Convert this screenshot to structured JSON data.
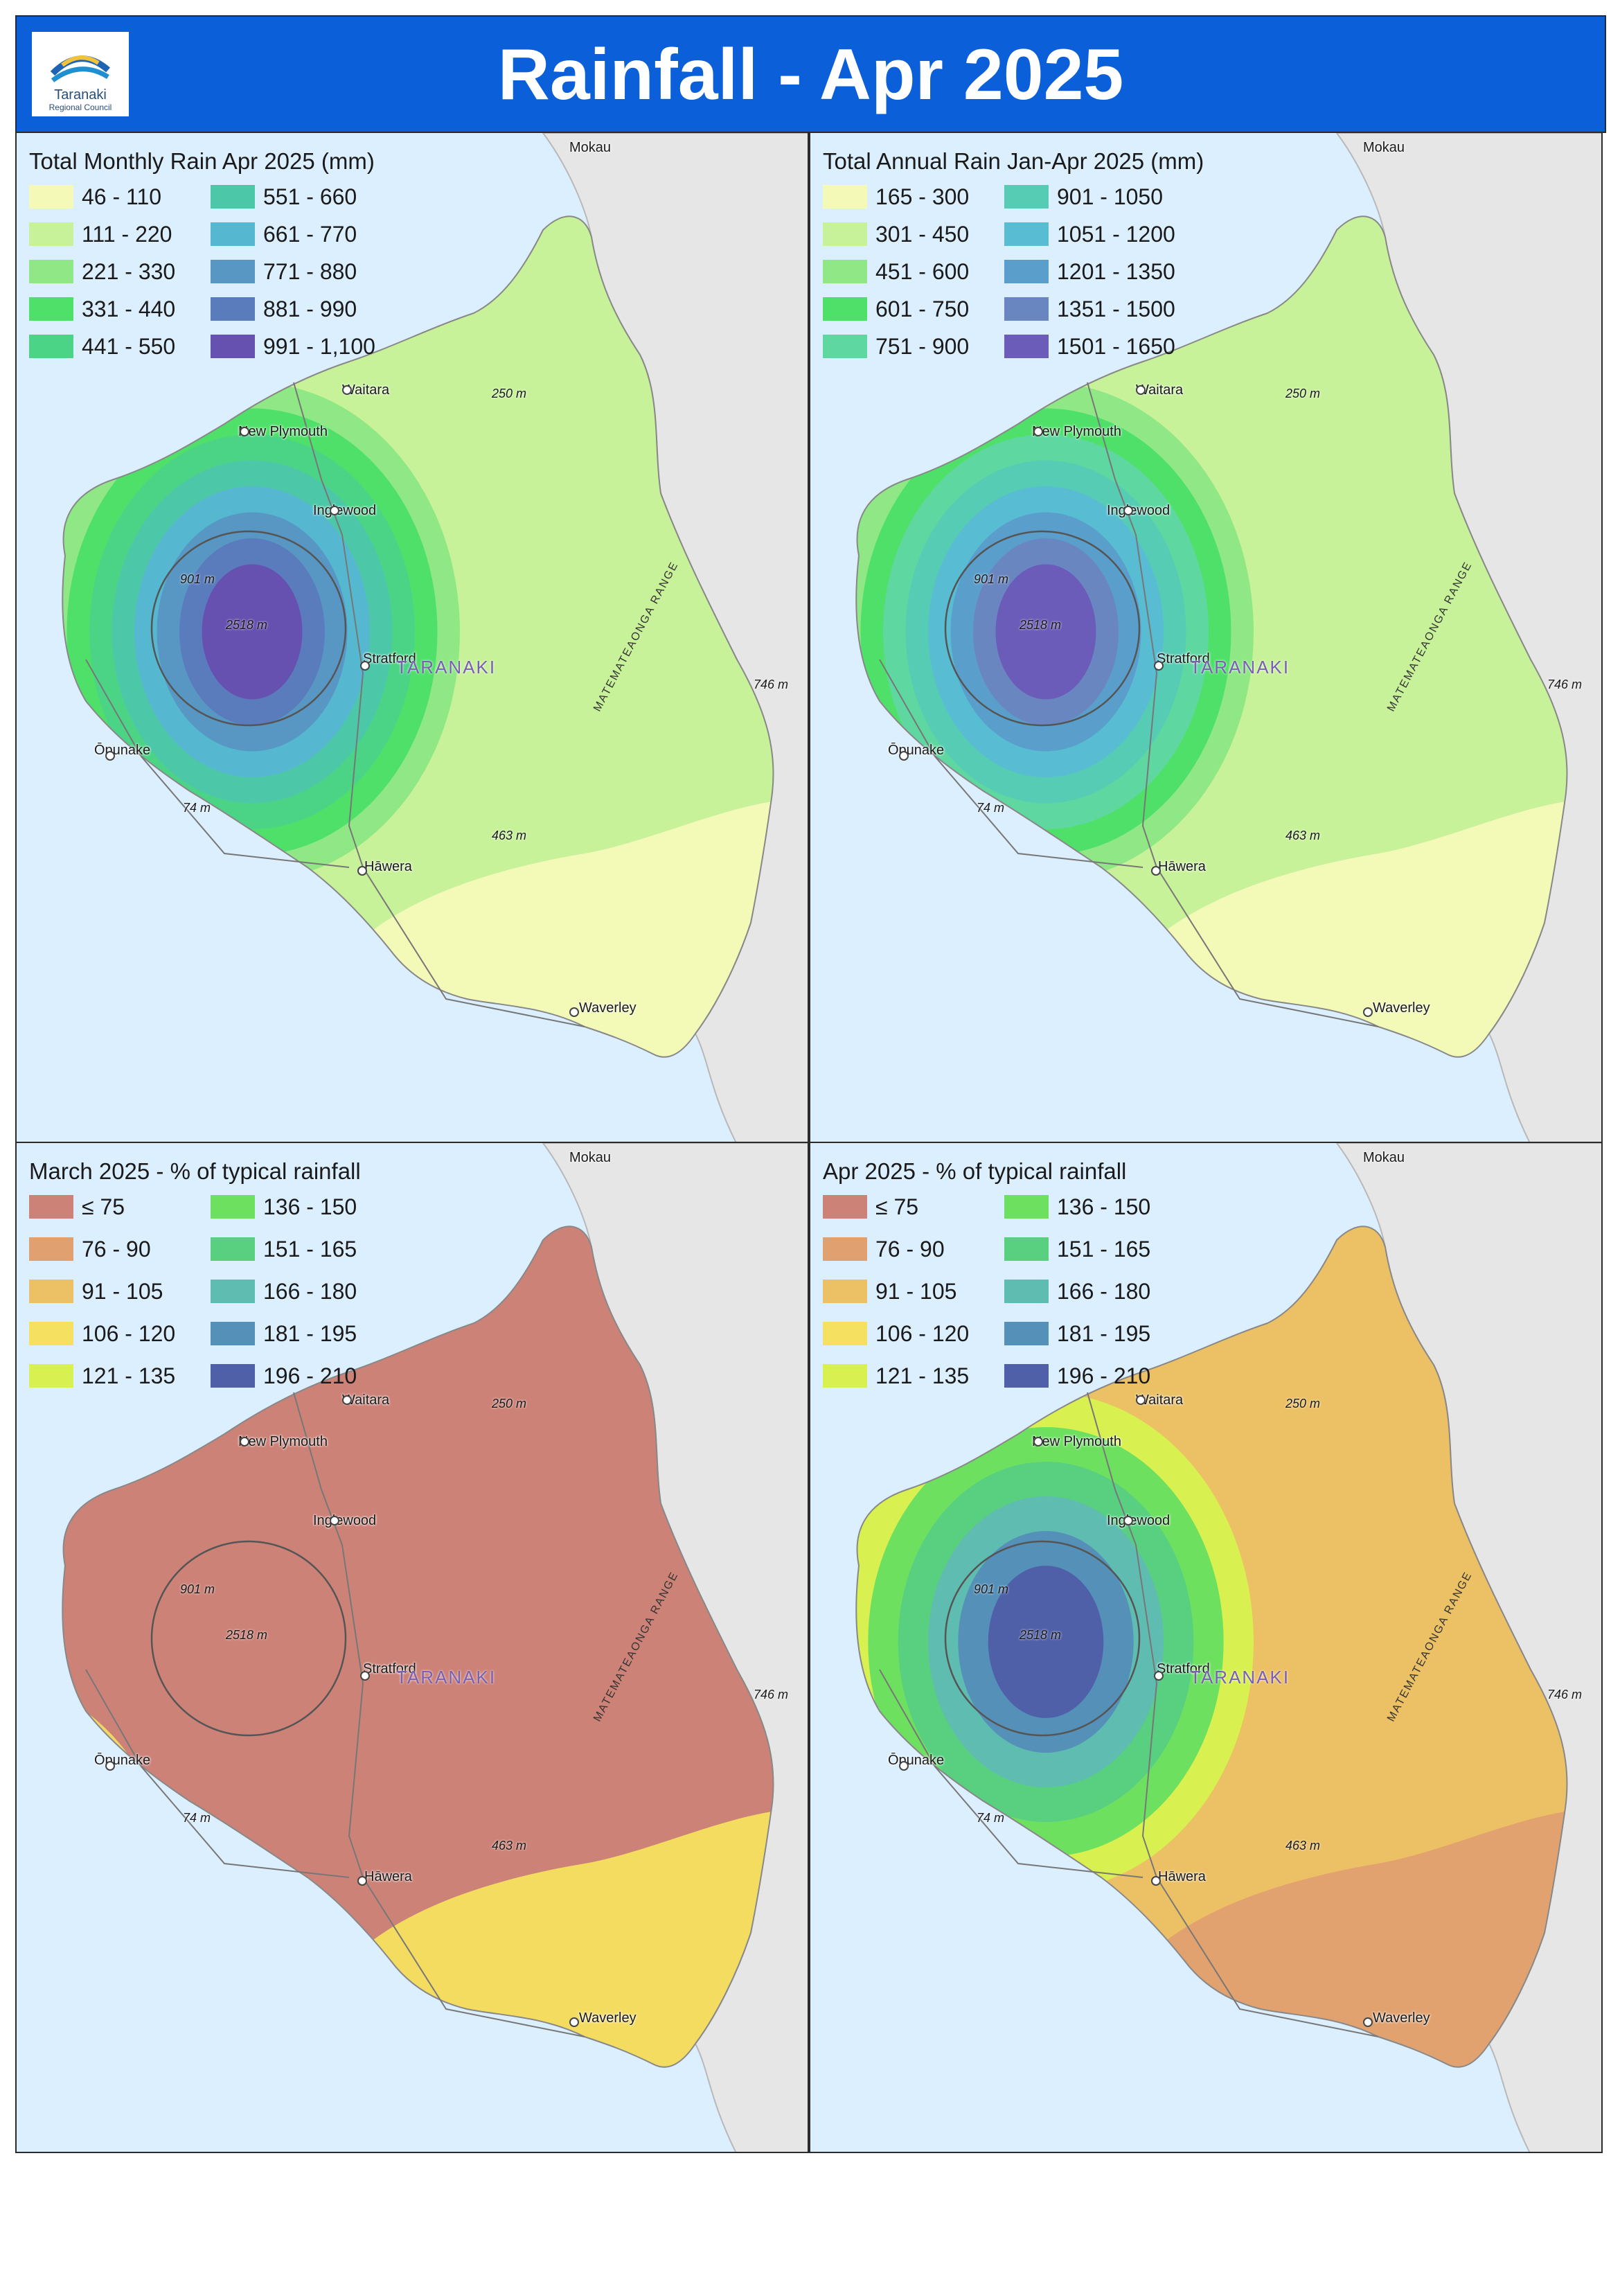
{
  "header": {
    "title": "Rainfall - Apr 2025",
    "logo_name": "Taranaki",
    "logo_sub": "Regional Council",
    "background": "#0b5fd8"
  },
  "places": {
    "mokau": "Mokau",
    "waitara": "Waitara",
    "new_plymouth": "New Plymouth",
    "inglewood": "Inglewood",
    "stratford": "Stratford",
    "opunake": "Ōpunake",
    "hawera": "Hāwera",
    "waverley": "Waverley",
    "taranaki": "TARANAKI",
    "range": "MATEMATEAONGA RANGE"
  },
  "elevations": {
    "e250": "250 m",
    "e901": "901 m",
    "e2518": "2518 m",
    "e746": "746 m",
    "e74": "74 m",
    "e463": "463 m"
  },
  "panels": [
    {
      "title": "Total Monthly Rain Apr 2025 (mm)",
      "legend": [
        {
          "label": "46 - 110",
          "color": "#f5f9b8"
        },
        {
          "label": "111 - 220",
          "color": "#c8f29a"
        },
        {
          "label": "221 - 330",
          "color": "#8fe885"
        },
        {
          "label": "331 - 440",
          "color": "#4fe06a"
        },
        {
          "label": "441 - 550",
          "color": "#4bd485"
        },
        {
          "label": "551 - 660",
          "color": "#4cc8a8"
        },
        {
          "label": "661 - 770",
          "color": "#55b8d0"
        },
        {
          "label": "771 - 880",
          "color": "#5896c4"
        },
        {
          "label": "881 - 990",
          "color": "#5a7cbc"
        },
        {
          "label": "991 - 1,100",
          "color": "#6650b0"
        }
      ],
      "fill_base": "#c8f29a",
      "bands": [
        "#8fe885",
        "#4fe06a",
        "#4bd485",
        "#4cc8a8",
        "#55b8d0",
        "#5896c4",
        "#5a7cbc",
        "#6650b0"
      ],
      "south_fill": "#f5f9b8"
    },
    {
      "title": "Total Annual Rain Jan-Apr 2025 (mm)",
      "legend": [
        {
          "label": "165 - 300",
          "color": "#f5f9b8"
        },
        {
          "label": "301 - 450",
          "color": "#c8f29a"
        },
        {
          "label": "451 - 600",
          "color": "#8fe885"
        },
        {
          "label": "601 - 750",
          "color": "#4fe06a"
        },
        {
          "label": "751 - 900",
          "color": "#5ed8a0"
        },
        {
          "label": "901 - 1050",
          "color": "#56ccb4"
        },
        {
          "label": "1051 - 1200",
          "color": "#58bcd2"
        },
        {
          "label": "1201 - 1350",
          "color": "#5a9fcc"
        },
        {
          "label": "1351 - 1500",
          "color": "#6a86c0"
        },
        {
          "label": "1501 - 1650",
          "color": "#6a5cb8"
        }
      ],
      "fill_base": "#c8f29a",
      "bands": [
        "#8fe885",
        "#4fe06a",
        "#5ed8a0",
        "#56ccb4",
        "#58bcd2",
        "#5a9fcc",
        "#6a86c0",
        "#6a5cb8"
      ],
      "south_fill": "#f5f9b8"
    },
    {
      "title": "March 2025 - % of typical rainfall",
      "legend": [
        {
          "label": "≤ 75",
          "color": "#cc8277"
        },
        {
          "label": "76 - 90",
          "color": "#e0a070"
        },
        {
          "label": "91 - 105",
          "color": "#ecc064"
        },
        {
          "label": "106 - 120",
          "color": "#f5e060"
        },
        {
          "label": "121 - 135",
          "color": "#d8f050"
        },
        {
          "label": "136 - 150",
          "color": "#6ee060"
        },
        {
          "label": "151 - 165",
          "color": "#58d080"
        },
        {
          "label": "166 - 180",
          "color": "#5fbcb0"
        },
        {
          "label": "181 - 195",
          "color": "#5590b8"
        },
        {
          "label": "196 - 210",
          "color": "#5060a8"
        }
      ],
      "fill_base": "#cc8277",
      "bands": [],
      "south_fill": "#f5e060"
    },
    {
      "title": "Apr 2025 - % of typical rainfall",
      "legend": [
        {
          "label": "≤ 75",
          "color": "#cc8277"
        },
        {
          "label": "76 - 90",
          "color": "#e0a070"
        },
        {
          "label": "91 - 105",
          "color": "#ecc064"
        },
        {
          "label": "106 - 120",
          "color": "#f5e060"
        },
        {
          "label": "121 - 135",
          "color": "#d8f050"
        },
        {
          "label": "136 - 150",
          "color": "#6ee060"
        },
        {
          "label": "151 - 165",
          "color": "#58d080"
        },
        {
          "label": "166 - 180",
          "color": "#5fbcb0"
        },
        {
          "label": "181 - 195",
          "color": "#5590b8"
        },
        {
          "label": "196 - 210",
          "color": "#5060a8"
        }
      ],
      "fill_base": "#ecc064",
      "bands": [
        "#d8f050",
        "#6ee060",
        "#58d080",
        "#5fbcb0",
        "#5590b8",
        "#5060a8"
      ],
      "south_fill": "#e0a070"
    }
  ]
}
